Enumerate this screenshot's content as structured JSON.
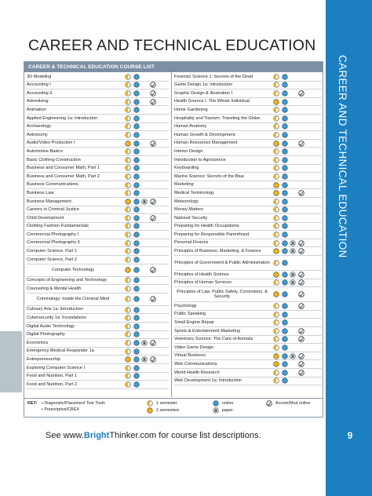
{
  "header": {
    "title": "CAREER AND TECHNICAL EDUCATION"
  },
  "sidebar_text": "CAREER AND TECHNICAL EDUCATION",
  "table": {
    "heading": "CAREER & TECHNICAL EDUCATION COURSE LIST",
    "left_rows": [
      "3D Modeling",
      "Accounting I",
      "Accounting II",
      "Advertising",
      "Animation",
      "Applied Engineering 1a: Introduction",
      "Archaeology",
      "Astronomy",
      "Audio/Video Production I",
      "Automotive Basics",
      "Basic Clothing Construction",
      "Business and Consumer Math, Part 1",
      "Business and Consumer Math, Part 2",
      "Business Communications",
      "Business Law",
      "Business Management",
      "Careers in Criminal Justice",
      "Child Development",
      "Clothing Fashion Fundamentals",
      "Commercial Photography I",
      "Commercial Photography II",
      "Computer Science, Part 1",
      "Computer Science, Part 2",
      "Computer Technology",
      "Concepts of Engineering and Technology",
      "Counseling & Mental Health",
      "Criminology: Inside the Criminal Mind",
      "Culinary Arts 1a: Introduction",
      "Cybersecurity 1a: Foundations",
      "Digital Audio Technology",
      "Digital Photography",
      "Economics",
      "Emergency Medical Responder 1a",
      "Entrepreneurship",
      "Exploring Computer Science I",
      "Food and Nutrition, Part 1",
      "Food and Nutrition, Part 2"
    ],
    "right_rows": [
      "Forensic Science 1: Secrets of the Dead",
      "Game Design 1a: Introduction",
      "Graphic Design & Illustration I",
      "Health Science I: The Whole Individual",
      "Home Gardening",
      "Hospitality and Tourism: Traveling the Globe",
      "Human Anatomy",
      "Human Growth & Development",
      "Human Resources Management",
      "Interior Design",
      "Introduction to Agriscience",
      "Keyboarding",
      "Marine Science: Secrets of the Blue",
      "Marketing",
      "Medical Terminology",
      "Meteorology",
      "Money Matters",
      "National Security",
      "Preparing for Health Occupations",
      "Preparing for Responsible Parenthood",
      "Personal Finance",
      "Principles of Business, Marketing, & Finance",
      "Principles of Government & Public Administration",
      "Principles of Health Science",
      "Principles of Human Services",
      "Principles of Law, Public Safety, Corrections, & Security",
      "Psychology",
      "Public Speaking",
      "Small Engine Repair",
      "Sports & Entertainment Marketing",
      "Veterinary Science: The Care of Animals",
      "Video Game Design",
      "Virtual Business",
      "Web Communications",
      "World Health Research",
      "Web Development 1a: Introduction"
    ]
  },
  "key": {
    "label": "KEY:",
    "items": [
      "• Diagnostic/Placement Test Tools",
      "• Prescriptive/CREX",
      "1 semester",
      "2 semesters",
      "online",
      "paper",
      "Accom/Mod online"
    ]
  },
  "footer": {
    "prefix": "See www.",
    "brand": "Bright",
    "suffix": "Thinker.com for course list descriptions.",
    "page_number": "9"
  }
}
